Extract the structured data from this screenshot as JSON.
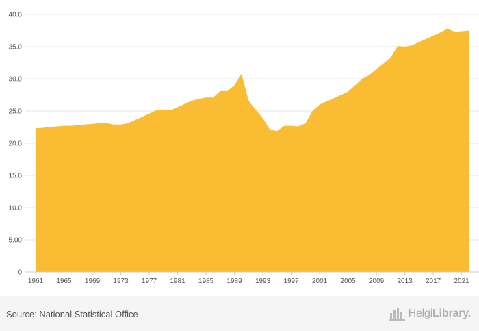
{
  "chart_data": {
    "type": "area",
    "title": "",
    "xlabel": "",
    "ylabel": "",
    "color": "#f9bc33",
    "ylim": [
      0,
      40
    ],
    "grid": true,
    "y_tick_labels": [
      "0",
      "5.00",
      "10.0",
      "15.0",
      "20.0",
      "25.0",
      "30.0",
      "35.0",
      "40.0"
    ],
    "y_tick_values": [
      0,
      5,
      10,
      15,
      20,
      25,
      30,
      35,
      40
    ],
    "x_tick_labels": [
      "1961",
      "1965",
      "1969",
      "1973",
      "1977",
      "1981",
      "1985",
      "1989",
      "1993",
      "1997",
      "2001",
      "2005",
      "2009",
      "2013",
      "2017",
      "2021"
    ],
    "x": [
      1961,
      1962,
      1963,
      1964,
      1965,
      1966,
      1967,
      1968,
      1969,
      1970,
      1971,
      1972,
      1973,
      1974,
      1975,
      1976,
      1977,
      1978,
      1979,
      1980,
      1981,
      1982,
      1983,
      1984,
      1985,
      1986,
      1987,
      1988,
      1989,
      1990,
      1991,
      1992,
      1993,
      1994,
      1995,
      1996,
      1997,
      1998,
      1999,
      2000,
      2001,
      2002,
      2003,
      2004,
      2005,
      2006,
      2007,
      2008,
      2009,
      2010,
      2011,
      2012,
      2013,
      2014,
      2015,
      2016,
      2017,
      2018,
      2019,
      2020,
      2021,
      2022
    ],
    "values": [
      22.3,
      22.4,
      22.5,
      22.6,
      22.7,
      22.7,
      22.8,
      22.9,
      23.0,
      23.1,
      23.1,
      22.9,
      22.9,
      23.1,
      23.6,
      24.1,
      24.6,
      25.1,
      25.1,
      25.1,
      25.6,
      26.1,
      26.6,
      26.9,
      27.1,
      27.1,
      28.1,
      28.1,
      29.0,
      30.8,
      26.6,
      25.2,
      23.9,
      22.1,
      21.9,
      22.7,
      22.7,
      22.6,
      23.1,
      25.0,
      26.0,
      26.5,
      27.0,
      27.5,
      28.0,
      29.0,
      30.0,
      30.6,
      31.5,
      32.4,
      33.3,
      35.1,
      35.0,
      35.2,
      35.7,
      36.2,
      36.7,
      37.2,
      37.8,
      37.3,
      37.4,
      37.5
    ]
  },
  "footer": {
    "source": "Source: National Statistical Office",
    "brand_regular": "Helgi",
    "brand_bold": "Library."
  },
  "icons": {
    "brand": "bar-logo-icon"
  }
}
